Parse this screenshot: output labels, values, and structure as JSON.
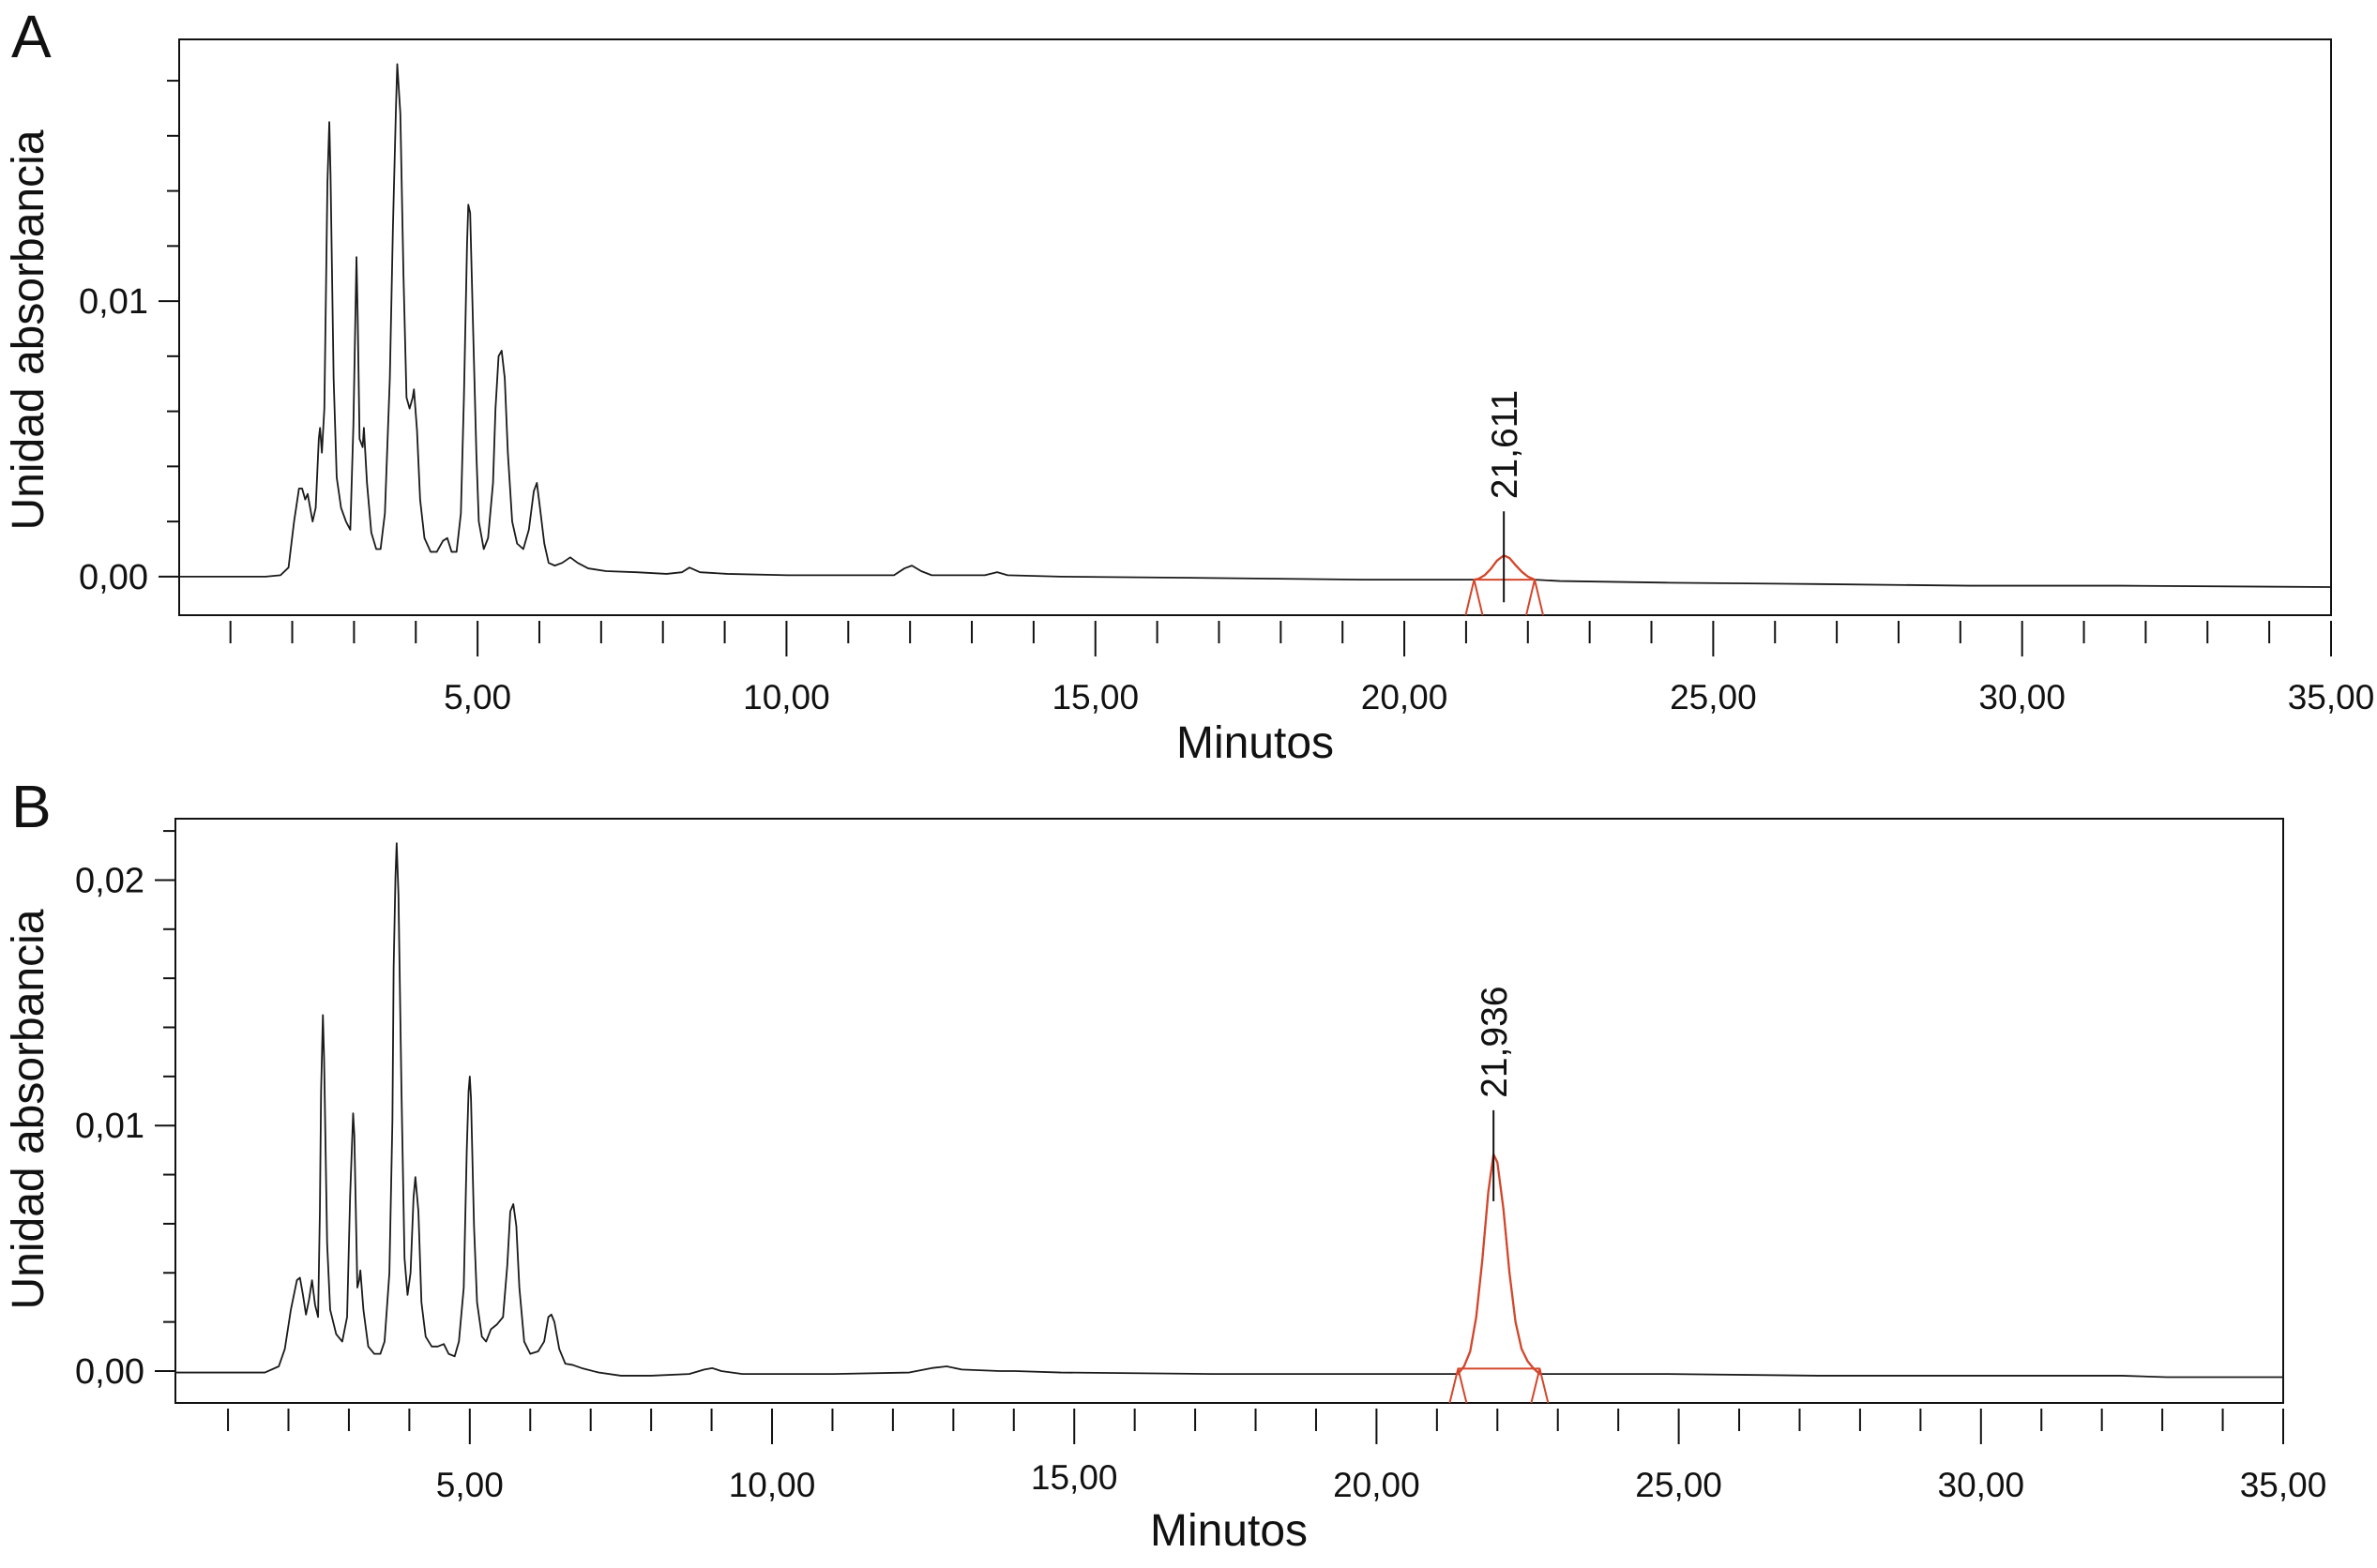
{
  "chart_data": [
    {
      "panel_label": "A",
      "type": "line",
      "xlabel": "Minutos",
      "ylabel": "Unidad absorbancia",
      "xlim": [
        0.17,
        35
      ],
      "ylim": [
        -0.0014,
        0.0195
      ],
      "xticks": [
        5,
        10,
        15,
        20,
        25,
        30,
        35
      ],
      "xtick_labels": [
        "5,00",
        "10,00",
        "15,00",
        "20,00",
        "25,00",
        "30,00",
        "35,00"
      ],
      "x_minor_step": 1,
      "yticks": [
        0,
        0.01
      ],
      "ytick_labels": [
        "0,00",
        "0,01"
      ],
      "y_minor_step": 0.002,
      "grid": false,
      "trace_color": "#1a1a1a",
      "series": [
        {
          "points": [
            [
              0.17,
              0.0
            ],
            [
              0.96,
              0.0
            ],
            [
              1.57,
              0.0
            ],
            [
              1.81,
              5e-05
            ],
            [
              1.94,
              0.00033
            ],
            [
              2.03,
              0.002
            ],
            [
              2.11,
              0.0032
            ],
            [
              2.16,
              0.0032
            ],
            [
              2.21,
              0.0028
            ],
            [
              2.25,
              0.003
            ],
            [
              2.33,
              0.002
            ],
            [
              2.38,
              0.0025
            ],
            [
              2.43,
              0.005
            ],
            [
              2.45,
              0.0054
            ],
            [
              2.48,
              0.0045
            ],
            [
              2.52,
              0.0061
            ],
            [
              2.57,
              0.0143
            ],
            [
              2.6,
              0.0165
            ],
            [
              2.62,
              0.0146
            ],
            [
              2.67,
              0.0072
            ],
            [
              2.72,
              0.0036
            ],
            [
              2.79,
              0.0025
            ],
            [
              2.87,
              0.002
            ],
            [
              2.94,
              0.0017
            ],
            [
              2.99,
              0.0055
            ],
            [
              3.04,
              0.0116
            ],
            [
              3.06,
              0.0094
            ],
            [
              3.09,
              0.005
            ],
            [
              3.14,
              0.0047
            ],
            [
              3.16,
              0.0054
            ],
            [
              3.21,
              0.0034
            ],
            [
              3.28,
              0.0016
            ],
            [
              3.36,
              0.001
            ],
            [
              3.43,
              0.001
            ],
            [
              3.5,
              0.0023
            ],
            [
              3.58,
              0.0072
            ],
            [
              3.63,
              0.0127
            ],
            [
              3.68,
              0.0171
            ],
            [
              3.7,
              0.0186
            ],
            [
              3.75,
              0.0168
            ],
            [
              3.8,
              0.011
            ],
            [
              3.85,
              0.0065
            ],
            [
              3.9,
              0.0061
            ],
            [
              3.95,
              0.0065
            ],
            [
              3.97,
              0.0068
            ],
            [
              4.02,
              0.0053
            ],
            [
              4.07,
              0.0028
            ],
            [
              4.14,
              0.0014
            ],
            [
              4.24,
              0.0009
            ],
            [
              4.34,
              0.0009
            ],
            [
              4.44,
              0.0013
            ],
            [
              4.51,
              0.0014
            ],
            [
              4.58,
              0.0009
            ],
            [
              4.66,
              0.0009
            ],
            [
              4.73,
              0.0023
            ],
            [
              4.78,
              0.0066
            ],
            [
              4.83,
              0.0121
            ],
            [
              4.85,
              0.0135
            ],
            [
              4.88,
              0.0132
            ],
            [
              4.93,
              0.0088
            ],
            [
              4.98,
              0.0045
            ],
            [
              5.02,
              0.002
            ],
            [
              5.1,
              0.001
            ],
            [
              5.17,
              0.0014
            ],
            [
              5.25,
              0.0034
            ],
            [
              5.29,
              0.0061
            ],
            [
              5.34,
              0.008
            ],
            [
              5.39,
              0.0082
            ],
            [
              5.44,
              0.0072
            ],
            [
              5.49,
              0.0045
            ],
            [
              5.56,
              0.002
            ],
            [
              5.64,
              0.0012
            ],
            [
              5.74,
              0.001
            ],
            [
              5.83,
              0.0017
            ],
            [
              5.91,
              0.0031
            ],
            [
              5.96,
              0.0034
            ],
            [
              6.01,
              0.0025
            ],
            [
              6.08,
              0.0012
            ],
            [
              6.15,
              0.0005
            ],
            [
              6.25,
              0.0004
            ],
            [
              6.37,
              0.0005
            ],
            [
              6.5,
              0.0007
            ],
            [
              6.62,
              0.0005
            ],
            [
              6.79,
              0.0003
            ],
            [
              7.08,
              0.0002
            ],
            [
              7.57,
              0.00016
            ],
            [
              8.06,
              0.0001
            ],
            [
              8.31,
              0.00016
            ],
            [
              8.43,
              0.00033
            ],
            [
              8.6,
              0.00016
            ],
            [
              9.04,
              0.0001
            ],
            [
              10.02,
              5e-05
            ],
            [
              11.0,
              5e-05
            ],
            [
              11.74,
              5e-05
            ],
            [
              11.91,
              0.0003
            ],
            [
              12.03,
              0.0004
            ],
            [
              12.18,
              0.0002
            ],
            [
              12.35,
              5e-05
            ],
            [
              13.21,
              5e-05
            ],
            [
              13.41,
              0.00016
            ],
            [
              13.58,
              5e-05
            ],
            [
              14.44,
              0.0
            ],
            [
              16.89,
              -5e-05
            ],
            [
              19.34,
              -0.00011
            ],
            [
              20.81,
              -0.00011
            ],
            [
              21.13,
              -0.00011
            ],
            [
              21.2,
              -8e-05
            ],
            [
              21.3,
              5e-05
            ],
            [
              21.4,
              0.00028
            ],
            [
              21.5,
              0.00058
            ],
            [
              21.611,
              0.00077
            ],
            [
              21.7,
              0.00068
            ],
            [
              21.8,
              0.00042
            ],
            [
              21.9,
              0.00018
            ],
            [
              22.0,
              0.0
            ],
            [
              22.11,
              -0.00011
            ],
            [
              22.52,
              -0.00016
            ],
            [
              24.24,
              -0.00022
            ],
            [
              26.69,
              -0.00027
            ],
            [
              29.14,
              -0.00033
            ],
            [
              31.59,
              -0.00033
            ],
            [
              34.98,
              -0.00038
            ]
          ]
        }
      ],
      "integrated_peak": {
        "label": "21,611",
        "retention_time": 21.611,
        "start": 21.13,
        "end": 22.11,
        "baseline": [
          [
            21.13,
            -0.00011
          ],
          [
            22.11,
            -0.00011
          ]
        ],
        "color": "#d4462b"
      }
    },
    {
      "panel_label": "B",
      "type": "line",
      "xlabel": "Minutos",
      "ylabel": "Unidad absorbancia",
      "xlim": [
        0.13,
        35
      ],
      "ylim": [
        -0.0013,
        0.0225
      ],
      "xticks": [
        5,
        10,
        15,
        20,
        25,
        30,
        35
      ],
      "xtick_labels": [
        "5,00",
        "10,00",
        "15,00",
        "20,00",
        "25,00",
        "30,00",
        "35,00"
      ],
      "x_minor_step": 1,
      "yticks": [
        0,
        0.01,
        0.02
      ],
      "ytick_labels": [
        "0,00",
        "0,01",
        "0,02"
      ],
      "y_minor_step": 0.002,
      "grid": false,
      "trace_color": "#1a1a1a",
      "series": [
        {
          "points": [
            [
              0.13,
              -6e-05
            ],
            [
              0.99,
              -6e-05
            ],
            [
              1.61,
              -6e-05
            ],
            [
              1.84,
              0.00019
            ],
            [
              1.94,
              0.0009
            ],
            [
              2.04,
              0.0025
            ],
            [
              2.14,
              0.0037
            ],
            [
              2.19,
              0.0038
            ],
            [
              2.24,
              0.0031
            ],
            [
              2.29,
              0.0023
            ],
            [
              2.34,
              0.0029
            ],
            [
              2.39,
              0.0037
            ],
            [
              2.44,
              0.0027
            ],
            [
              2.49,
              0.0022
            ],
            [
              2.52,
              0.0065
            ],
            [
              2.54,
              0.0114
            ],
            [
              2.57,
              0.0145
            ],
            [
              2.59,
              0.0127
            ],
            [
              2.64,
              0.0052
            ],
            [
              2.69,
              0.0025
            ],
            [
              2.79,
              0.0015
            ],
            [
              2.89,
              0.0012
            ],
            [
              2.97,
              0.0022
            ],
            [
              3.02,
              0.0071
            ],
            [
              3.07,
              0.0105
            ],
            [
              3.09,
              0.0096
            ],
            [
              3.14,
              0.0034
            ],
            [
              3.17,
              0.0037
            ],
            [
              3.19,
              0.0041
            ],
            [
              3.24,
              0.0025
            ],
            [
              3.32,
              0.001
            ],
            [
              3.42,
              0.0007
            ],
            [
              3.52,
              0.0007
            ],
            [
              3.59,
              0.0012
            ],
            [
              3.67,
              0.004
            ],
            [
              3.72,
              0.0102
            ],
            [
              3.74,
              0.0164
            ],
            [
              3.77,
              0.0201
            ],
            [
              3.79,
              0.0215
            ],
            [
              3.82,
              0.0194
            ],
            [
              3.87,
              0.0114
            ],
            [
              3.92,
              0.0046
            ],
            [
              3.97,
              0.0031
            ],
            [
              4.02,
              0.004
            ],
            [
              4.07,
              0.0071
            ],
            [
              4.1,
              0.0079
            ],
            [
              4.15,
              0.0065
            ],
            [
              4.2,
              0.0028
            ],
            [
              4.27,
              0.0014
            ],
            [
              4.37,
              0.001
            ],
            [
              4.47,
              0.001
            ],
            [
              4.57,
              0.0011
            ],
            [
              4.65,
              0.0007
            ],
            [
              4.75,
              0.0006
            ],
            [
              4.82,
              0.0012
            ],
            [
              4.9,
              0.0034
            ],
            [
              4.95,
              0.009
            ],
            [
              4.98,
              0.0114
            ],
            [
              5.0,
              0.012
            ],
            [
              5.02,
              0.0111
            ],
            [
              5.07,
              0.0059
            ],
            [
              5.12,
              0.0028
            ],
            [
              5.2,
              0.0014
            ],
            [
              5.27,
              0.0012
            ],
            [
              5.35,
              0.0017
            ],
            [
              5.45,
              0.0019
            ],
            [
              5.55,
              0.0022
            ],
            [
              5.62,
              0.0043
            ],
            [
              5.67,
              0.0065
            ],
            [
              5.72,
              0.0068
            ],
            [
              5.77,
              0.0059
            ],
            [
              5.82,
              0.0034
            ],
            [
              5.9,
              0.0012
            ],
            [
              6.0,
              0.0007
            ],
            [
              6.13,
              0.0008
            ],
            [
              6.23,
              0.0012
            ],
            [
              6.3,
              0.0022
            ],
            [
              6.35,
              0.0023
            ],
            [
              6.4,
              0.002
            ],
            [
              6.48,
              0.0009
            ],
            [
              6.58,
              0.0003
            ],
            [
              6.7,
              0.00025
            ],
            [
              6.85,
              0.00012
            ],
            [
              7.13,
              -6e-05
            ],
            [
              7.5,
              -0.00019
            ],
            [
              8.0,
              -0.00019
            ],
            [
              8.63,
              -0.00012
            ],
            [
              8.88,
              6e-05
            ],
            [
              9.01,
              0.00012
            ],
            [
              9.16,
              0.0
            ],
            [
              9.51,
              -0.00012
            ],
            [
              11.02,
              -0.00012
            ],
            [
              12.27,
              -6e-05
            ],
            [
              12.64,
              0.00012
            ],
            [
              12.89,
              0.00019
            ],
            [
              13.14,
              6e-05
            ],
            [
              13.77,
              0.0
            ],
            [
              14.02,
              0.0
            ],
            [
              14.78,
              -6e-05
            ],
            [
              17.28,
              -0.00012
            ],
            [
              19.79,
              -0.00012
            ],
            [
              21.04,
              -0.00012
            ],
            [
              21.35,
              -0.00012
            ],
            [
              21.45,
              0.0002
            ],
            [
              21.55,
              0.0008
            ],
            [
              21.65,
              0.0022
            ],
            [
              21.75,
              0.0045
            ],
            [
              21.85,
              0.0073
            ],
            [
              21.936,
              0.00883
            ],
            [
              22.0,
              0.0085
            ],
            [
              22.1,
              0.0066
            ],
            [
              22.2,
              0.004
            ],
            [
              22.3,
              0.002
            ],
            [
              22.4,
              0.0009
            ],
            [
              22.5,
              0.0004
            ],
            [
              22.6,
              0.0001
            ],
            [
              22.7,
              -0.00012
            ],
            [
              23.05,
              -0.00012
            ],
            [
              24.81,
              -0.00012
            ],
            [
              27.31,
              -0.00019
            ],
            [
              29.82,
              -0.00019
            ],
            [
              32.33,
              -0.00019
            ],
            [
              33.08,
              -0.00025
            ],
            [
              35.0,
              -0.00025
            ]
          ]
        }
      ],
      "integrated_peak": {
        "label": "21,936",
        "retention_time": 21.936,
        "start": 21.35,
        "end": 22.7,
        "baseline": [
          [
            21.35,
            0.0001
          ],
          [
            22.7,
            0.0001
          ]
        ],
        "color": "#d4462b"
      }
    }
  ]
}
